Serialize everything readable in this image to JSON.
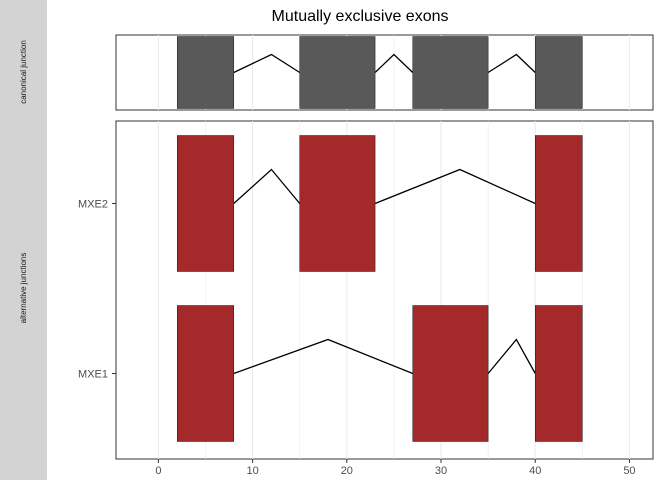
{
  "chart_data": {
    "type": "gene-structure",
    "title": "Mutually exclusive exons",
    "x_ticks": [
      0,
      10,
      20,
      30,
      40,
      50
    ],
    "xlim": [
      -4.5,
      52.5
    ],
    "grid": true,
    "colors": {
      "canonical_exon": "#595959",
      "alternative_exon": "#a3292a",
      "intron": "#000000",
      "strip": "#d3d3d3",
      "grid": "#ebebeb"
    },
    "panels": [
      {
        "strip_label": "canonical junction",
        "tracks": [
          {
            "label": "",
            "exons": [
              [
                2,
                8
              ],
              [
                15,
                23
              ],
              [
                27,
                35
              ],
              [
                40,
                45
              ]
            ],
            "introns": [
              {
                "start": 8,
                "peak": 12,
                "end": 15
              },
              {
                "start": 23,
                "peak": 25,
                "end": 27
              },
              {
                "start": 35,
                "peak": 38,
                "end": 40
              }
            ]
          }
        ]
      },
      {
        "strip_label": "alternative junctions",
        "tracks": [
          {
            "label": "MXE2",
            "exons": [
              [
                2,
                8
              ],
              [
                15,
                23
              ],
              [
                40,
                45
              ]
            ],
            "introns": [
              {
                "start": 8,
                "peak": 12,
                "end": 15
              },
              {
                "start": 23,
                "peak": 32,
                "end": 40
              }
            ]
          },
          {
            "label": "MXE1",
            "exons": [
              [
                2,
                8
              ],
              [
                27,
                35
              ],
              [
                40,
                45
              ]
            ],
            "introns": [
              {
                "start": 8,
                "peak": 18,
                "end": 27
              },
              {
                "start": 35,
                "peak": 38,
                "end": 40
              }
            ]
          }
        ]
      }
    ]
  }
}
